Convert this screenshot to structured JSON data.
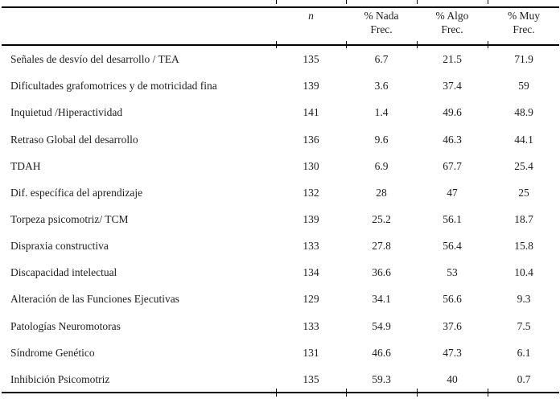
{
  "table": {
    "header": {
      "n": "n",
      "nada": [
        "% Nada",
        "Frec."
      ],
      "algo": [
        "% Algo",
        "Frec."
      ],
      "muy": [
        "% Muy",
        "Frec."
      ]
    },
    "rows": [
      {
        "label": "Señales de desvío del desarrollo / TEA",
        "n": "135",
        "nada": "6.7",
        "algo": "21.5",
        "muy": "71.9"
      },
      {
        "label": "Dificultades grafomotrices y de motricidad fina",
        "n": "139",
        "nada": "3.6",
        "algo": "37.4",
        "muy": "59"
      },
      {
        "label": "Inquietud /Hiperactividad",
        "n": "141",
        "nada": "1.4",
        "algo": "49.6",
        "muy": "48.9"
      },
      {
        "label": "Retraso Global del desarrollo",
        "n": "136",
        "nada": "9.6",
        "algo": "46.3",
        "muy": "44.1"
      },
      {
        "label": "TDAH",
        "n": "130",
        "nada": "6.9",
        "algo": "67.7",
        "muy": "25.4"
      },
      {
        "label": "Dif. específica del aprendizaje",
        "n": "132",
        "nada": "28",
        "algo": "47",
        "muy": "25"
      },
      {
        "label": "Torpeza psicomotriz/ TCM",
        "n": "139",
        "nada": "25.2",
        "algo": "56.1",
        "muy": "18.7"
      },
      {
        "label": "Dispraxia constructiva",
        "n": "133",
        "nada": "27.8",
        "algo": "56.4",
        "muy": "15.8"
      },
      {
        "label": "Discapacidad intelectual",
        "n": "134",
        "nada": "36.6",
        "algo": "53",
        "muy": "10.4"
      },
      {
        "label": "Alteración de las Funciones Ejecutivas",
        "n": "129",
        "nada": "34.1",
        "algo": "56.6",
        "muy": "9.3"
      },
      {
        "label": "Patologías Neuromotoras",
        "n": "133",
        "nada": "54.9",
        "algo": "37.6",
        "muy": "7.5"
      },
      {
        "label": "Síndrome Genético",
        "n": "131",
        "nada": "46.6",
        "algo": "47.3",
        "muy": "6.1"
      },
      {
        "label": "Inhibición Psicomotriz",
        "n": "135",
        "nada": "59.3",
        "algo": "40",
        "muy": "0.7"
      }
    ],
    "colors": {
      "text": "#1e1e1e",
      "rule": "#000000",
      "background": "#ffffff"
    }
  }
}
